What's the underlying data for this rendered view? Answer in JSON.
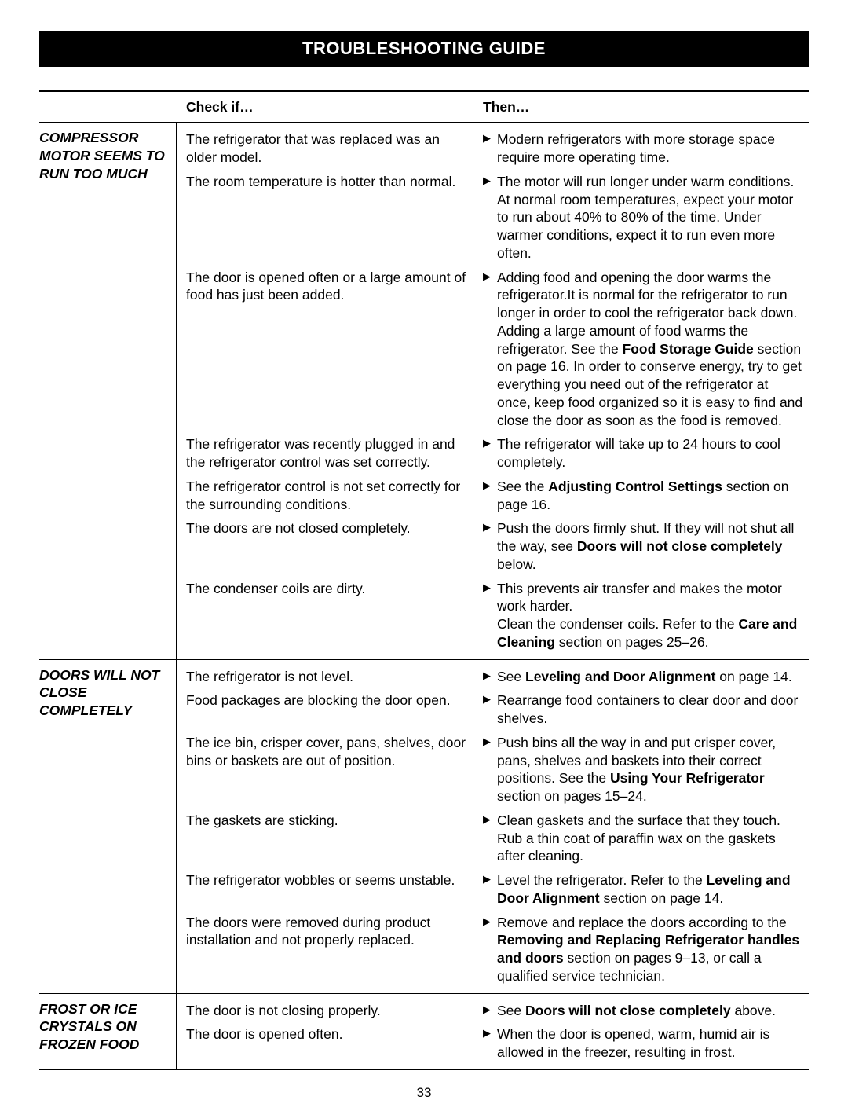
{
  "page_number": "33",
  "title": "TROUBLESHOOTING GUIDE",
  "headers": {
    "check": "Check if…",
    "then": "Then…"
  },
  "sections": [
    {
      "problem": "COMPRESSOR MOTOR SEEMS TO RUN TOO MUCH",
      "rows": [
        {
          "check": "The refrigerator that was replaced was an older model.",
          "then": [
            [
              "",
              "Modern refrigerators with more storage space require more operating time."
            ]
          ]
        },
        {
          "check": "The room temperature is hotter than normal.",
          "then": [
            [
              "",
              "The motor will run longer under warm conditions. At normal room temperatures, expect your motor to run about 40% to 80% of the time. Under warmer conditions, expect it to run even more often."
            ]
          ]
        },
        {
          "check": "The door is opened often or a large amount of food has just been added.",
          "then": [
            [
              "",
              "Adding food and opening the door warms the refrigerator."
            ],
            [
              "",
              "It is normal for the refrigerator to run longer in order to cool the refrigerator back down. Adding a large amount of food warms the refrigerator. See the"
            ],
            [
              "b",
              " Food Storage Guide "
            ],
            [
              "",
              "section on page 16. In order to conserve energy, try to get everything you need out of the refrigerator at once, keep food organized so it is easy to find and close the door as soon as the food is removed."
            ]
          ]
        },
        {
          "check": "The refrigerator was recently plugged in and the refrigerator control was set correctly.",
          "then": [
            [
              "",
              "The refrigerator will take up to 24 hours to cool completely."
            ]
          ]
        },
        {
          "check": "The refrigerator control is not set correctly for the surrounding conditions.",
          "then": [
            [
              "",
              "See the "
            ],
            [
              "b",
              "Adjusting Control Settings"
            ],
            [
              "",
              " section on page 16."
            ]
          ]
        },
        {
          "check": "The doors are not closed completely.",
          "then": [
            [
              "",
              "Push the doors firmly shut. If they will not shut all the way, see "
            ],
            [
              "b",
              "Doors will not close completely"
            ],
            [
              "",
              " below."
            ]
          ]
        },
        {
          "check": "The condenser coils are dirty.",
          "then": [
            [
              "",
              "This prevents air transfer and makes the motor work harder."
            ],
            [
              "br",
              ""
            ],
            [
              "",
              "Clean the condenser coils. Refer to the "
            ],
            [
              "b",
              "Care and Cleaning"
            ],
            [
              "",
              " section on pages 25–26."
            ]
          ]
        }
      ]
    },
    {
      "problem": "DOORS WILL NOT CLOSE COMPLETELY",
      "rows": [
        {
          "check": "The refrigerator is not level.",
          "then": [
            [
              "",
              "See "
            ],
            [
              "b",
              "Leveling and Door Alignment"
            ],
            [
              "",
              " on page 14."
            ]
          ]
        },
        {
          "check": "Food packages are blocking the door open.",
          "then": [
            [
              "",
              "Rearrange food containers to clear door and door shelves."
            ]
          ]
        },
        {
          "check": "The ice bin, crisper cover, pans, shelves, door bins or baskets are out of position.",
          "then": [
            [
              "",
              "Push bins all the way in and put crisper cover, pans, shelves and baskets into their correct positions. See the "
            ],
            [
              "b",
              "Using Your Refrigerator"
            ],
            [
              "",
              " section on pages 15–24."
            ]
          ]
        },
        {
          "check": "The gaskets are sticking.",
          "then": [
            [
              "",
              "Clean gaskets and the surface that they touch. Rub a thin coat of paraffin wax on the gaskets after cleaning."
            ]
          ]
        },
        {
          "check": "The refrigerator wobbles or seems unstable.",
          "then": [
            [
              "",
              "Level the refrigerator. Refer to the "
            ],
            [
              "b",
              "Leveling and Door Alignment"
            ],
            [
              "",
              " section on page 14."
            ]
          ]
        },
        {
          "check": "The doors were removed during product installation and not properly replaced.",
          "then": [
            [
              "",
              "Remove and replace the doors according to the "
            ],
            [
              "b",
              "Removing and Replacing Refrigerator handles and doors"
            ],
            [
              "",
              " section on pages 9–13, or call a qualified service technician."
            ]
          ]
        }
      ]
    },
    {
      "problem": "FROST OR ICE CRYSTALS ON FROZEN FOOD",
      "rows": [
        {
          "check": "The door is not closing properly.",
          "then": [
            [
              "",
              "See "
            ],
            [
              "b",
              "Doors will not close completely"
            ],
            [
              "",
              " above."
            ]
          ]
        },
        {
          "check": "The door is opened often.",
          "then": [
            [
              "",
              "When the door is opened, warm, humid air is allowed in the freezer, resulting in frost."
            ]
          ]
        }
      ]
    }
  ]
}
